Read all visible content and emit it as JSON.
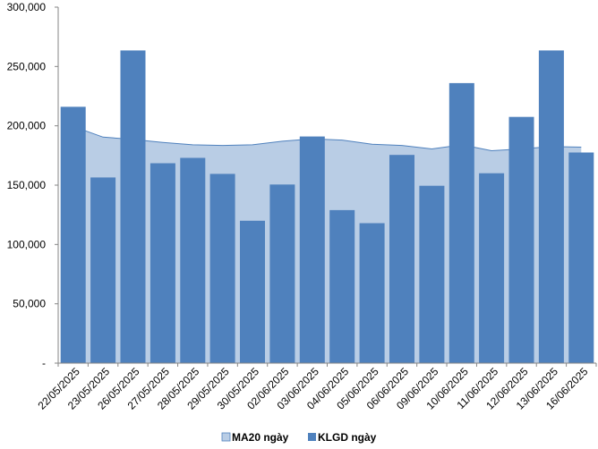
{
  "chart_data": {
    "type": "bar",
    "categories": [
      "22/05/2025",
      "23/05/2025",
      "26/05/2025",
      "27/05/2025",
      "28/05/2025",
      "29/05/2025",
      "30/05/2025",
      "02/06/2025",
      "03/06/2025",
      "04/06/2025",
      "05/06/2025",
      "06/06/2025",
      "09/06/2025",
      "10/06/2025",
      "11/06/2025",
      "12/06/2025",
      "13/06/2025",
      "16/06/2025"
    ],
    "series": [
      {
        "name": "KLGD ngày",
        "type": "bar",
        "color": "#4f81bd",
        "values": [
          216000,
          156500,
          263500,
          168500,
          173000,
          159500,
          120000,
          150500,
          191000,
          129000,
          118000,
          175500,
          149500,
          236000,
          160000,
          207500,
          263500,
          177500
        ]
      },
      {
        "name": "MA20 ngày",
        "type": "area",
        "color": "#b9cde5",
        "line_color": "#4f81bd",
        "values": [
          199500,
          190500,
          188500,
          186000,
          184000,
          183500,
          184000,
          187000,
          189000,
          188000,
          184500,
          183500,
          180500,
          184000,
          179000,
          180500,
          182500,
          182000
        ]
      }
    ],
    "y_ticks": [
      "-",
      "50,000",
      "100,000",
      "150,000",
      "200,000",
      "250,000",
      "300,000"
    ],
    "ylim": [
      0,
      300000
    ],
    "grid": false,
    "legend_position": "bottom"
  }
}
